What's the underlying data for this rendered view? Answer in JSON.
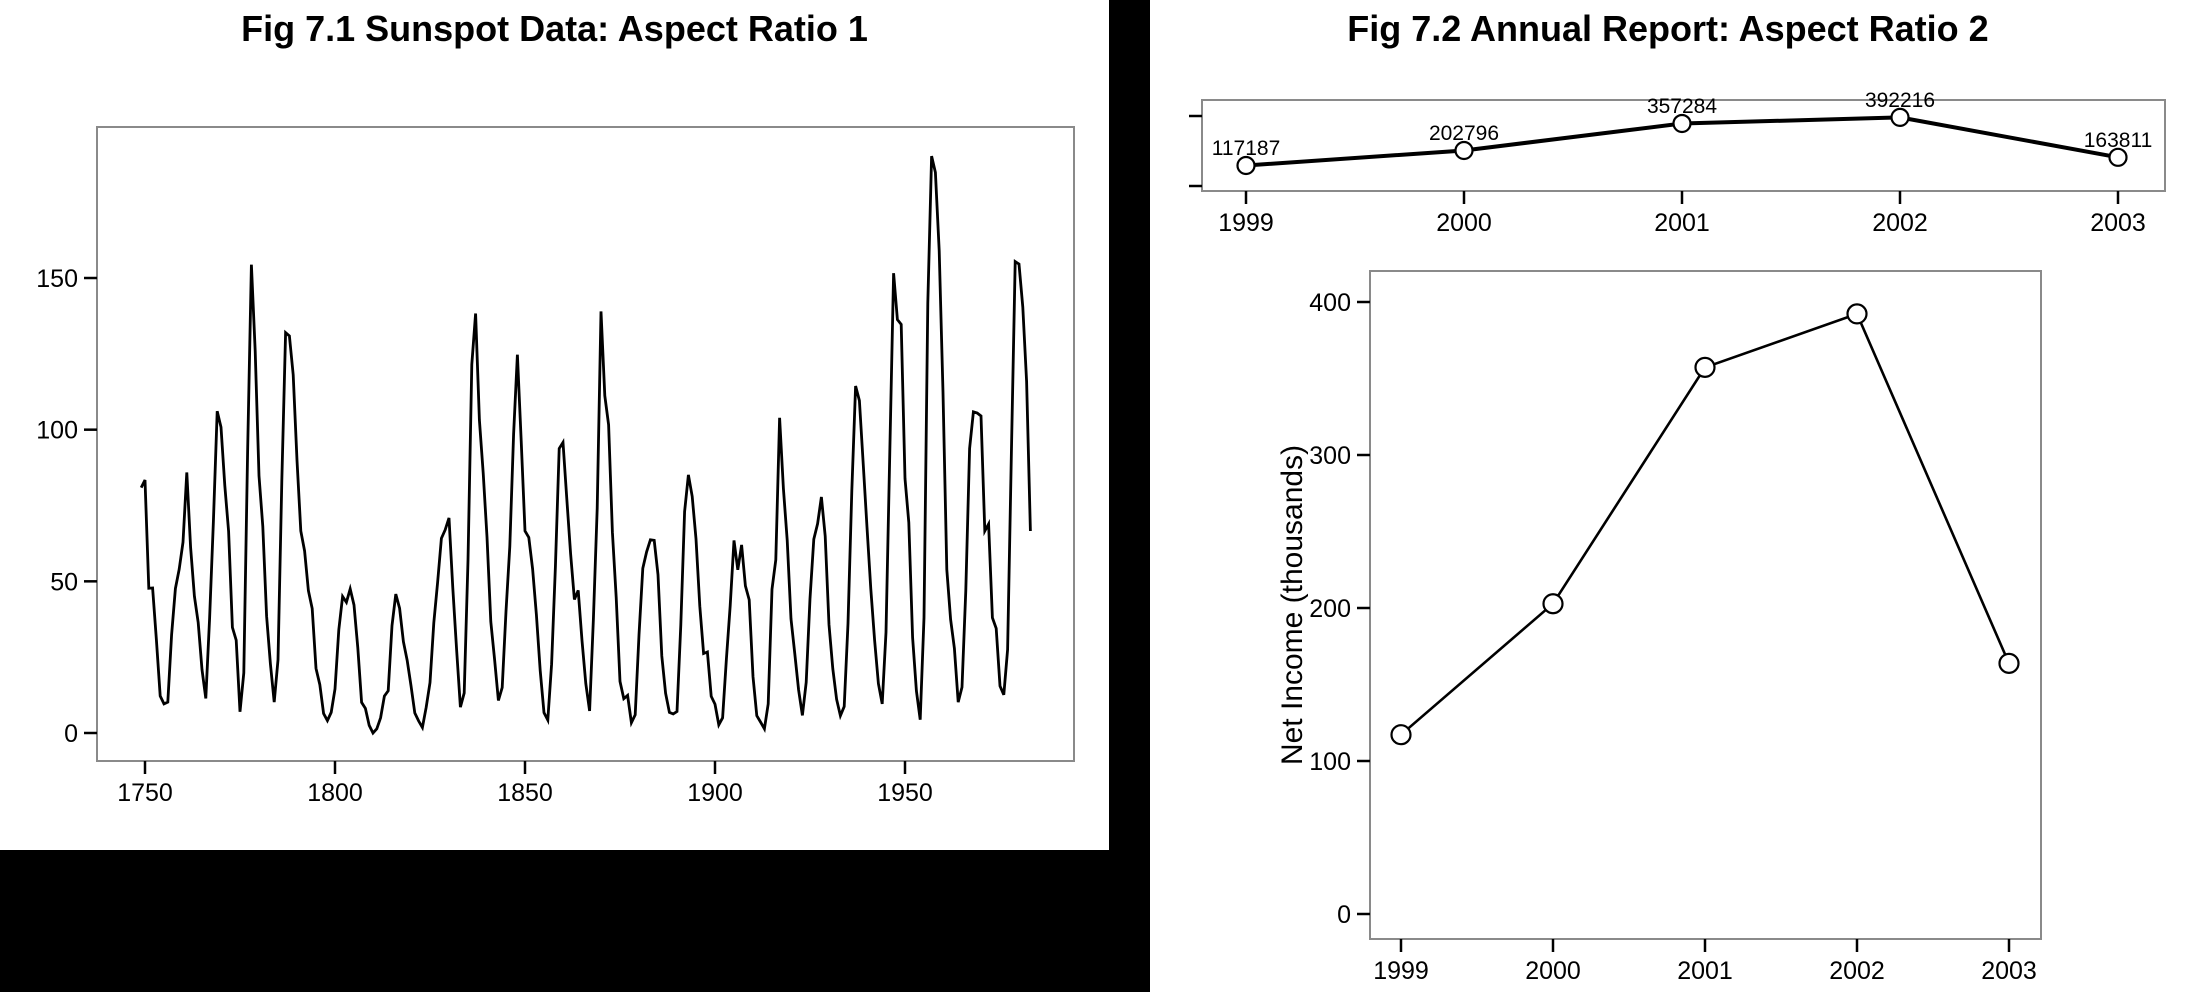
{
  "colors": {
    "page_background": "#000000",
    "panel_background": "#ffffff",
    "series_line": "#000000",
    "plot_box_border": "#8a8a8a",
    "tick_mark": "#000000",
    "marker_fill": "#ffffff",
    "marker_stroke": "#000000",
    "text": "#000000"
  },
  "fig1": {
    "title": "Fig 7.1 Sunspot Data: Aspect Ratio 1"
  },
  "fig2": {
    "title": "Fig 7.2 Annual Report: Aspect Ratio 2"
  },
  "chart_data": [
    {
      "id": "sunspot-series",
      "type": "line",
      "title": "Fig 7.1 Sunspot Data: Aspect Ratio 1",
      "xlabel": "",
      "ylabel": "",
      "x_start_year": 1749,
      "x_end_year": 1983,
      "xticks": [
        1750,
        1800,
        1850,
        1900,
        1950
      ],
      "yticks": [
        0,
        50,
        100,
        150
      ],
      "xlim": [
        1737.4,
        1994.5
      ],
      "ylim": [
        -9.2,
        200
      ],
      "grid": false,
      "legend": null,
      "marker": "none",
      "values": [
        80.9,
        83.4,
        47.7,
        47.8,
        30.7,
        12.2,
        9.6,
        10.2,
        32.4,
        47.6,
        54,
        62.9,
        85.9,
        61.2,
        45.1,
        36.4,
        20.9,
        11.4,
        37.8,
        69.8,
        106.1,
        100.8,
        81.6,
        66.5,
        34.8,
        30.6,
        7,
        19.8,
        92.5,
        154.4,
        125.9,
        84.8,
        68.1,
        38.5,
        22.8,
        10.2,
        24.1,
        82.9,
        132,
        130.9,
        118.1,
        89.9,
        66.6,
        60,
        46.9,
        41,
        21.3,
        16,
        6.4,
        4.1,
        6.8,
        14.5,
        34,
        45,
        43.1,
        47.5,
        42.2,
        28.1,
        10.1,
        8.1,
        2.5,
        0,
        1.4,
        5,
        12.2,
        13.9,
        35.4,
        45.8,
        41.1,
        30.1,
        23.9,
        15.6,
        6.6,
        4,
        1.8,
        8.5,
        16.6,
        36.3,
        49.6,
        64.2,
        67,
        70.9,
        47.8,
        27.5,
        8.5,
        13.2,
        56.9,
        121.5,
        138.3,
        103.2,
        85.7,
        64.6,
        36.7,
        24.2,
        10.7,
        15,
        40.1,
        61.5,
        98.5,
        124.7,
        96.3,
        66.6,
        64.5,
        54.1,
        39,
        20.6,
        6.7,
        4.3,
        22.7,
        54.8,
        93.8,
        95.8,
        77.2,
        59.1,
        44,
        47,
        30.5,
        16.3,
        7.3,
        37.6,
        74,
        139,
        111.2,
        101.6,
        66.2,
        44.7,
        17,
        11.3,
        12.4,
        3.4,
        6,
        32.3,
        54.3,
        59.7,
        63.7,
        63.5,
        52.2,
        25.4,
        13.1,
        6.8,
        6.3,
        7.1,
        35.6,
        73,
        85.1,
        78,
        64,
        41.8,
        26.2,
        26.7,
        12.1,
        9.5,
        2.7,
        5,
        24.4,
        42,
        63.5,
        53.8,
        62,
        48.5,
        43.9,
        18.6,
        5.7,
        3.6,
        1.4,
        9.6,
        47.4,
        57.1,
        103.9,
        80.6,
        63.6,
        37.6,
        26.1,
        14.2,
        5.8,
        16.7,
        44.3,
        63.9,
        69,
        77.8,
        64.9,
        35.7,
        21.2,
        11.1,
        5.7,
        8.7,
        36.1,
        79.7,
        114.4,
        109.6,
        88.8,
        67.8,
        47.5,
        30.6,
        16.3,
        9.6,
        33.2,
        92.6,
        151.6,
        136.3,
        134.7,
        83.9,
        69.4,
        31.5,
        13.9,
        4.4,
        38,
        141.7,
        190.2,
        184.8,
        159,
        112.3,
        53.9,
        37.5,
        27.9,
        10.2,
        15.1,
        47,
        93.8,
        105.9,
        105.5,
        104.5,
        66.6,
        68.9,
        38,
        34.5,
        15.5,
        12.6,
        27.5,
        92.5,
        155.4,
        154.6,
        140.4,
        115.9,
        66.6
      ]
    },
    {
      "id": "annual-report-compact",
      "type": "line",
      "title": "Fig 7.2 Annual Report: Aspect Ratio 2",
      "xlabel": "",
      "ylabel": "",
      "x": [
        1999,
        2000,
        2001,
        2002,
        2003
      ],
      "values": [
        117187,
        202796,
        357284,
        392216,
        163811
      ],
      "point_labels": [
        "117187",
        "202796",
        "357284",
        "392216",
        "163811"
      ],
      "xticks": [
        1999,
        2000,
        2001,
        2002,
        2003
      ],
      "yticks": [
        0,
        400000
      ],
      "ytick_labels_visible": false,
      "ylim": [
        -33000,
        433000
      ],
      "grid": false,
      "legend": null,
      "marker": "open-circle"
    },
    {
      "id": "annual-report-tall",
      "type": "line",
      "title": "",
      "xlabel": "",
      "ylabel": "Net Income (thousands)",
      "unit": "thousands",
      "x": [
        1999,
        2000,
        2001,
        2002,
        2003
      ],
      "values": [
        117.187,
        202.796,
        357.284,
        392.216,
        163.811
      ],
      "xticks": [
        1999,
        2000,
        2001,
        2002,
        2003
      ],
      "yticks": [
        0,
        100,
        200,
        300,
        400
      ],
      "ytick_labels_visible": true,
      "ylim": [
        -17,
        420
      ],
      "grid": false,
      "legend": null,
      "marker": "open-circle"
    }
  ]
}
